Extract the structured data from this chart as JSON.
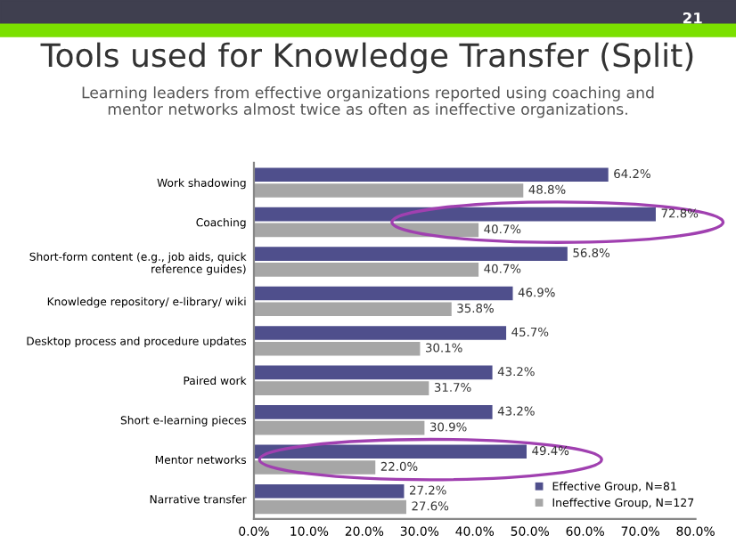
{
  "chart_data": {
    "type": "bar",
    "orientation": "horizontal",
    "title": "Tools used for Knowledge Transfer (Split)",
    "subtitle": "Learning leaders from effective organizations reported using coaching and\nmentor networks almost twice as often as ineffective organizations.",
    "annotations": [
      "21"
    ],
    "categories": [
      "Work shadowing",
      "Coaching",
      "Short-form content (e.g., job aids, quick\nreference guides)",
      "Knowledge repository/ e-library/ wiki",
      "Desktop process and procedure updates",
      "Paired work",
      "Short e-learning pieces",
      "Mentor networks",
      "Narrative transfer"
    ],
    "series": [
      {
        "name": "Effective Group, N=81",
        "color": "#4f4f8c",
        "values": [
          64.2,
          72.8,
          56.8,
          46.9,
          45.7,
          43.2,
          43.2,
          49.4,
          27.2
        ],
        "value_labels": [
          "64.2%",
          "72.8%",
          "56.8%",
          "46.9%",
          "45.7%",
          "43.2%",
          "43.2%",
          "49.4%",
          "27.2%"
        ]
      },
      {
        "name": "Ineffective Group, N=127",
        "color": "#a6a6a6",
        "values": [
          48.8,
          40.7,
          40.7,
          35.8,
          30.1,
          31.7,
          30.9,
          22.0,
          27.6
        ],
        "value_labels": [
          "48.8%",
          "40.7%",
          "40.7%",
          "35.8%",
          "30.1%",
          "31.7%",
          "30.9%",
          "22.0%",
          "27.6%"
        ]
      }
    ],
    "xlim": [
      0,
      80
    ],
    "xticks": [
      {
        "value": 0,
        "label": "0.0%"
      },
      {
        "value": 10,
        "label": "10.0%"
      },
      {
        "value": 20,
        "label": "20.0%"
      },
      {
        "value": 30,
        "label": "30.0%"
      },
      {
        "value": 40,
        "label": "40.0%"
      },
      {
        "value": 50,
        "label": "50.0%"
      },
      {
        "value": 60,
        "label": "60.0%"
      },
      {
        "value": 70,
        "label": "70.0%"
      },
      {
        "value": 80,
        "label": "80.0%"
      }
    ],
    "grid": false,
    "legend": "bottom right"
  }
}
